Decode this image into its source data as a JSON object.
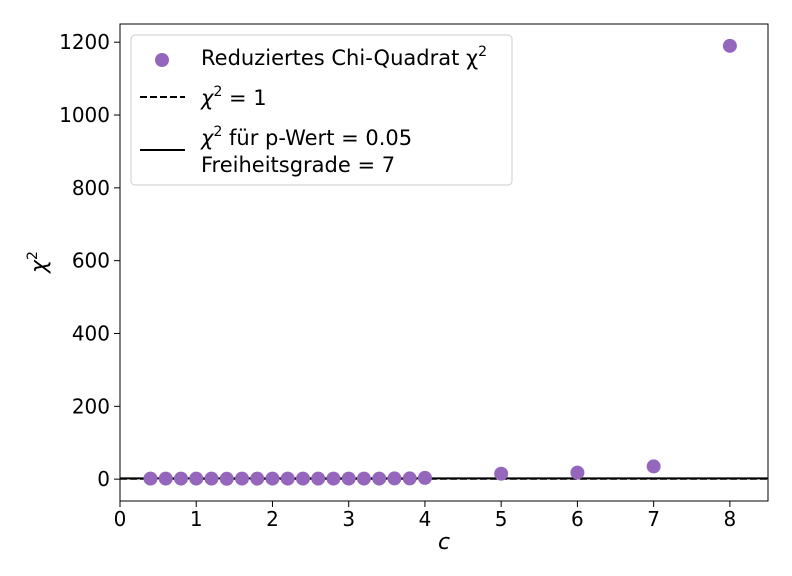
{
  "chart_data": {
    "type": "scatter",
    "xlabel": "c",
    "ylabel": "χ",
    "ylabel_sup": "2",
    "xlim": [
      0,
      8.5
    ],
    "ylim": [
      -60,
      1250
    ],
    "xticks": [
      0,
      1,
      2,
      3,
      4,
      5,
      6,
      7,
      8
    ],
    "yticks": [
      0,
      200,
      400,
      600,
      800,
      1000,
      1200
    ],
    "grid": false,
    "legend_placement": "upper-left",
    "series": [
      {
        "name": "Reduziertes Chi-Quadrat χ²",
        "label_text": "Reduziertes Chi-Quadrat χ",
        "label_sup": "2",
        "color": "#9467bd",
        "x": [
          0.4,
          0.6,
          0.8,
          1.0,
          1.2,
          1.4,
          1.6,
          1.8,
          2.0,
          2.2,
          2.4,
          2.6,
          2.8,
          3.0,
          3.2,
          3.4,
          3.6,
          3.8,
          4.0,
          5.0,
          6.0,
          7.0,
          8.0
        ],
        "y": [
          1.5,
          1.5,
          1.5,
          1.5,
          1.5,
          1.0,
          1.5,
          1.5,
          1.5,
          1.5,
          1.5,
          1.5,
          1.5,
          1.5,
          1.5,
          1.5,
          2.0,
          2.0,
          3.5,
          15,
          18,
          35,
          1190
        ]
      }
    ],
    "reference_lines": [
      {
        "label_text": "χ",
        "label_sup": "2",
        "label_rest": " = 1",
        "style": "dashed",
        "color": "#000000",
        "y": 1
      },
      {
        "label_text": "χ",
        "label_sup": "2",
        "label_rest": " für p-Wert = 0.05",
        "label_line2": "Freiheitsgrade = 7",
        "style": "solid",
        "color": "#000000",
        "y": 2.0
      }
    ]
  }
}
